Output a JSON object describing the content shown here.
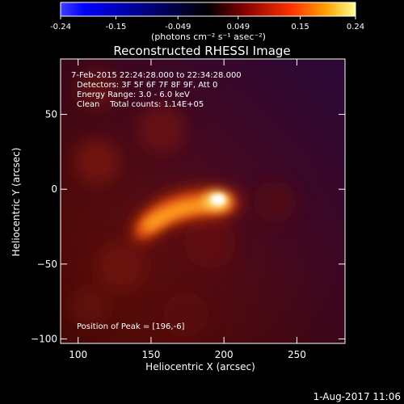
{
  "colorbar": {
    "tick_labels": [
      "-0.24",
      "-0.15",
      "-0.049",
      "0.049",
      "0.15",
      "0.24"
    ],
    "units_label": "(photons cm⁻² s⁻¹ asec⁻²)",
    "range": [
      -0.24,
      0.24
    ],
    "colormap": "blue-white-red / hot",
    "colors": {
      "negative": [
        "#ffffff",
        "#4040ff",
        "#0000ff",
        "#000000"
      ],
      "positive": [
        "#000000",
        "#800000",
        "#ff3000",
        "#ffa000",
        "#ffff80"
      ]
    }
  },
  "plot": {
    "title": "Reconstructed RHESSI Image",
    "xlabel": "Heliocentric X (arcsec)",
    "ylabel": "Heliocentric Y (arcsec)",
    "x_ticks": [
      "100",
      "150",
      "200",
      "250"
    ],
    "y_ticks": [
      "50",
      "0",
      "−50",
      "−100"
    ],
    "xlim": [
      88,
      283
    ],
    "ylim": [
      -103,
      87
    ],
    "info_lines": [
      " 7-Feb-2015 22:24:28.000 to 22:34:28.000",
      "Detectors: 3F 5F 6F 7F 8F 9F, Att 0",
      "Energy Range: 3.0 - 6.0 keV",
      "Clean    Total counts: 1.14E+05"
    ],
    "peak_label": "Position of Peak = [196,-6]",
    "peak": [
      196,
      -6
    ]
  },
  "footer": {
    "date": "1-Aug-2017 11:06"
  }
}
